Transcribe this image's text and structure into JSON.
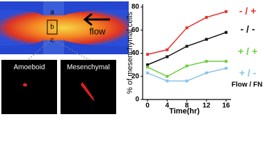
{
  "figure": {
    "channel_labels": [
      "a",
      "b",
      "c"
    ],
    "flow_label": "flow",
    "cell_images": [
      "Amoeboid",
      "Mesenchymal"
    ]
  },
  "chart_data": {
    "type": "line",
    "ylabel": "% of mesenchymal cells",
    "xlabel": "Time(hr)",
    "x": [
      0,
      4,
      8,
      12,
      16
    ],
    "xlim": [
      -1,
      17
    ],
    "xticks": [
      0,
      4,
      8,
      12,
      16
    ],
    "ylim": [
      0,
      80
    ],
    "yticks": [
      0,
      20,
      40,
      60,
      80
    ],
    "legend_title": "Flow / FN",
    "series": [
      {
        "name": "- / +",
        "color": "#e8312a",
        "values": [
          39,
          43,
          62,
          71,
          76
        ]
      },
      {
        "name": "- / -",
        "color": "#111111",
        "values": [
          30,
          37,
          46,
          52,
          58
        ]
      },
      {
        "name": "+ / +",
        "color": "#6ad13c",
        "values": [
          28,
          20,
          29,
          33,
          33
        ]
      },
      {
        "name": "+ / -",
        "color": "#86c4ea",
        "values": [
          23,
          16,
          16,
          23,
          27
        ]
      }
    ]
  }
}
